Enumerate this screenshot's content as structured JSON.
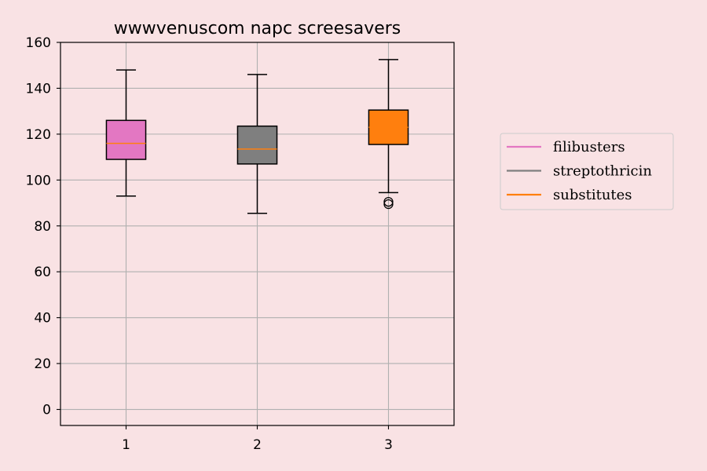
{
  "chart_data": {
    "type": "box",
    "title": "wwwvenuscom napc screesavers",
    "xlabel": "",
    "ylabel": "",
    "categories": [
      "1",
      "2",
      "3"
    ],
    "ylim": [
      -7,
      160
    ],
    "yticks": [
      0,
      20,
      40,
      60,
      80,
      100,
      120,
      140,
      160
    ],
    "grid": true,
    "legend_position": "right",
    "series": [
      {
        "name": "filibusters",
        "color": "#e377c2",
        "min": 93,
        "q1": 109,
        "median": 116,
        "q3": 126,
        "max": 148,
        "outliers": []
      },
      {
        "name": "streptothricin",
        "color": "#7f7f7f",
        "min": 85.5,
        "q1": 107,
        "median": 113.5,
        "q3": 123.5,
        "max": 146,
        "outliers": []
      },
      {
        "name": "substitutes",
        "color": "#ff7f0e",
        "min": 94.5,
        "q1": 115.5,
        "median": 123,
        "q3": 130.5,
        "max": 152.5,
        "outliers": [
          89.5,
          90.5
        ]
      }
    ],
    "median_line_color": "#ff7f0e"
  }
}
